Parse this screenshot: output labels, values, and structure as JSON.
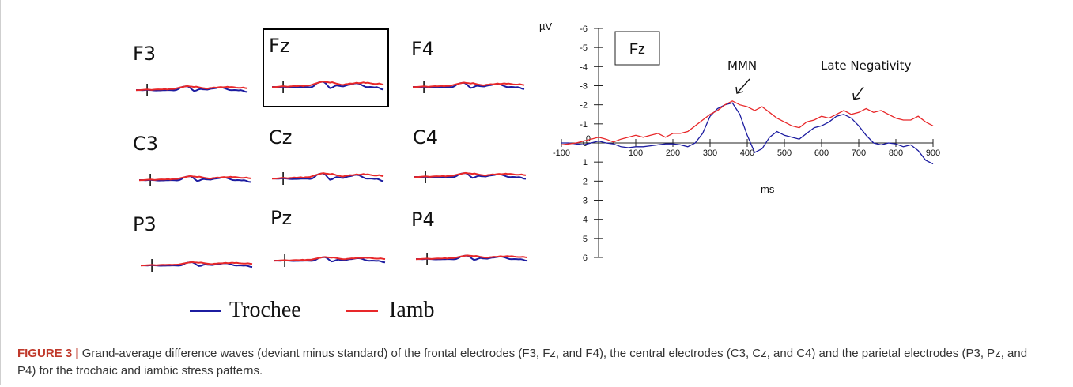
{
  "panels": [
    {
      "label": "F3"
    },
    {
      "label": "Fz"
    },
    {
      "label": "F4"
    },
    {
      "label": "C3"
    },
    {
      "label": "Cz"
    },
    {
      "label": "C4"
    },
    {
      "label": "P3"
    },
    {
      "label": "Pz"
    },
    {
      "label": "P4"
    }
  ],
  "legend": {
    "items": [
      {
        "label": "Trochee",
        "color": "#1c1ca0"
      },
      {
        "label": "Iamb",
        "color": "#e8282a"
      }
    ]
  },
  "caption": {
    "label": "FIGURE 3 |",
    "text": "Grand-average difference waves (deviant minus standard) of the frontal electrodes (F3, Fz, and F4), the central electrodes (C3, Cz, and C4) and the parietal electrodes (P3, Pz, and P4) for the trochaic and iambic stress patterns."
  },
  "chart_data": {
    "type": "line",
    "panel_label": "Fz",
    "ylabel": "µV",
    "xlabel": "ms",
    "xlim": [
      -100,
      900
    ],
    "ylim": [
      -6,
      6
    ],
    "y_inverted": true,
    "x_ticks": [
      -100,
      100,
      200,
      300,
      400,
      500,
      600,
      700,
      800,
      900
    ],
    "y_ticks": [
      -6,
      -5,
      -4,
      -3,
      -2,
      -1,
      1,
      2,
      3,
      4,
      5,
      6
    ],
    "x_zero_label": "0",
    "y_zero_label": "0",
    "annotations": [
      {
        "text": "MMN",
        "x": 380,
        "y": -2.5
      },
      {
        "text": "Late Negativity",
        "x": 700,
        "y": -2.5
      }
    ],
    "series": [
      {
        "name": "Trochee",
        "color": "#1c1ca0",
        "x": [
          -100,
          -80,
          -60,
          -40,
          -20,
          0,
          20,
          40,
          60,
          80,
          100,
          120,
          140,
          160,
          180,
          200,
          220,
          240,
          260,
          280,
          300,
          320,
          340,
          360,
          380,
          400,
          420,
          440,
          460,
          480,
          500,
          520,
          540,
          560,
          580,
          600,
          620,
          640,
          660,
          680,
          700,
          720,
          740,
          760,
          780,
          800,
          820,
          840,
          860,
          880,
          900
        ],
        "y": [
          0,
          0,
          0.05,
          0.1,
          0,
          -0.1,
          0,
          0.05,
          0.2,
          0.25,
          0.2,
          0.2,
          0.15,
          0.1,
          0.05,
          0.05,
          0.1,
          0.2,
          0,
          -0.5,
          -1.4,
          -1.8,
          -2.0,
          -2.1,
          -1.5,
          -0.4,
          0.5,
          0.3,
          -0.3,
          -0.6,
          -0.4,
          -0.3,
          -0.2,
          -0.5,
          -0.8,
          -0.9,
          -1.1,
          -1.4,
          -1.5,
          -1.3,
          -0.9,
          -0.4,
          0,
          0.1,
          0,
          0.05,
          0.2,
          0.1,
          0.4,
          0.9,
          1.1
        ]
      },
      {
        "name": "Iamb",
        "color": "#e8282a",
        "x": [
          -100,
          -80,
          -60,
          -40,
          -20,
          0,
          20,
          40,
          60,
          80,
          100,
          120,
          140,
          160,
          180,
          200,
          220,
          240,
          260,
          280,
          300,
          320,
          340,
          360,
          380,
          400,
          420,
          440,
          460,
          480,
          500,
          520,
          540,
          560,
          580,
          600,
          620,
          640,
          660,
          680,
          700,
          720,
          740,
          760,
          780,
          800,
          820,
          840,
          860,
          880,
          900
        ],
        "y": [
          0.1,
          0.05,
          0,
          -0.1,
          -0.2,
          -0.3,
          -0.2,
          -0.05,
          -0.2,
          -0.3,
          -0.4,
          -0.3,
          -0.4,
          -0.5,
          -0.3,
          -0.5,
          -0.5,
          -0.6,
          -0.9,
          -1.2,
          -1.5,
          -1.7,
          -2.0,
          -2.2,
          -2.0,
          -1.9,
          -1.7,
          -1.9,
          -1.6,
          -1.3,
          -1.1,
          -0.9,
          -0.8,
          -1.1,
          -1.2,
          -1.4,
          -1.3,
          -1.5,
          -1.7,
          -1.5,
          -1.6,
          -1.8,
          -1.6,
          -1.7,
          -1.5,
          -1.3,
          -1.2,
          -1.2,
          -1.4,
          -1.1,
          -0.9
        ]
      }
    ]
  }
}
